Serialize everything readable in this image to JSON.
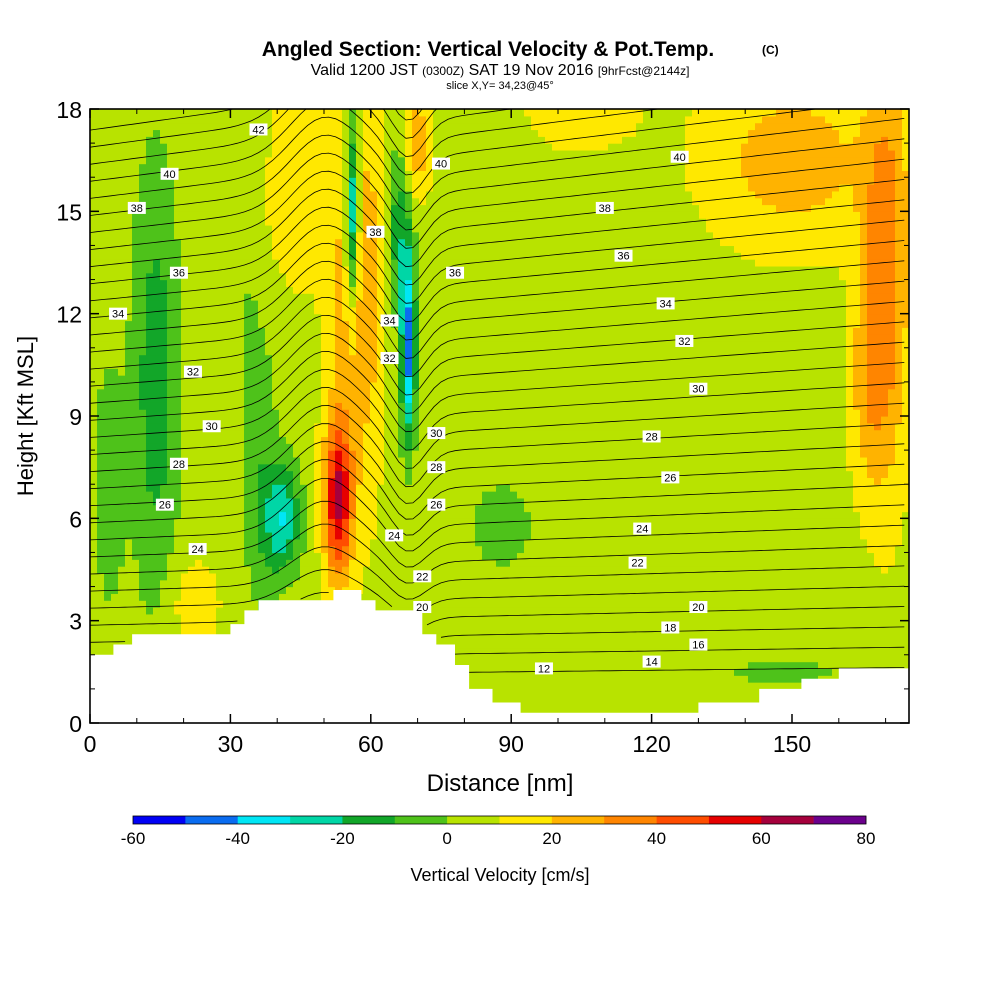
{
  "chart_data": {
    "type": "heatmap",
    "title": "Angled Section: Vertical Velocity & Pot.Temp.",
    "title_units": "(C)",
    "subtitle": {
      "valid_prefix": "Valid 1200 JST",
      "utc": "(0300Z)",
      "valid_date": "SAT 19 Nov 2016",
      "forecast": "[9hrFcst@2144z]"
    },
    "slice_label": "slice X,Y= 34,23@45°",
    "xlabel": "Distance [nm]",
    "ylabel": "Height [Kft MSL]",
    "xlim": [
      0,
      175
    ],
    "ylim": [
      0,
      18
    ],
    "x_ticks": [
      0,
      30,
      60,
      90,
      120,
      150
    ],
    "y_ticks": [
      0,
      3,
      6,
      9,
      12,
      15,
      18
    ],
    "grid": false,
    "colorbar": {
      "label": "Vertical Velocity [cm/s]",
      "bounds": [
        -60,
        -50,
        -40,
        -30,
        -20,
        -10,
        0,
        10,
        20,
        30,
        40,
        50,
        60,
        70,
        80
      ],
      "tick_labels": [
        "-60",
        "-40",
        "-20",
        "0",
        "20",
        "40",
        "60",
        "80"
      ],
      "colors": [
        "#0000f5",
        "#0a6cf0",
        "#00e6f5",
        "#00d6a6",
        "#12a629",
        "#4ec21a",
        "#b8e300",
        "#ffe800",
        "#ffb300",
        "#ff8500",
        "#ff4d00",
        "#e60000",
        "#a5003c",
        "#6b008c"
      ]
    },
    "terrain": [
      [
        0,
        2.0
      ],
      [
        5,
        2.0
      ],
      [
        5,
        2.3
      ],
      [
        9,
        2.3
      ],
      [
        9,
        2.6
      ],
      [
        30,
        2.6
      ],
      [
        30,
        2.9
      ],
      [
        33,
        2.9
      ],
      [
        33,
        3.3
      ],
      [
        36,
        3.3
      ],
      [
        36,
        3.6
      ],
      [
        52,
        3.6
      ],
      [
        52,
        3.9
      ],
      [
        58,
        3.9
      ],
      [
        58,
        3.6
      ],
      [
        61,
        3.6
      ],
      [
        61,
        3.3
      ],
      [
        71,
        3.3
      ],
      [
        71,
        2.6
      ],
      [
        74,
        2.6
      ],
      [
        74,
        2.3
      ],
      [
        78,
        2.3
      ],
      [
        78,
        1.7
      ],
      [
        81,
        1.7
      ],
      [
        81,
        1.0
      ],
      [
        86,
        1.0
      ],
      [
        86,
        0.6
      ],
      [
        92,
        0.6
      ],
      [
        92,
        0.3
      ],
      [
        130,
        0.3
      ],
      [
        130,
        0.6
      ],
      [
        143,
        0.6
      ],
      [
        143,
        1.0
      ],
      [
        152,
        1.0
      ],
      [
        152,
        1.3
      ],
      [
        160,
        1.3
      ],
      [
        160,
        1.6
      ],
      [
        175,
        1.6
      ]
    ],
    "updrafts": [
      {
        "x": 53,
        "z": 6.5,
        "w": 52,
        "sx": 3.0,
        "sz": 2.3
      },
      {
        "x": 55,
        "z": 12.0,
        "w": 18,
        "sx": 4.5,
        "sz": 6.0
      },
      {
        "x": 60,
        "z": 13.0,
        "w": 14,
        "sx": 3.0,
        "sz": 6.0
      },
      {
        "x": 44,
        "z": 16.0,
        "w": 14,
        "sx": 7.0,
        "sz": 3.0
      },
      {
        "x": 70,
        "z": 17.0,
        "w": 22,
        "sx": 3.0,
        "sz": 1.5
      },
      {
        "x": 22,
        "z": 3.5,
        "w": 10,
        "sx": 6.0,
        "sz": 1.4
      },
      {
        "x": 37,
        "z": 13.0,
        "w": 8,
        "sx": 3.0,
        "sz": 3.0
      },
      {
        "x": 170,
        "z": 13.0,
        "w": 30,
        "sx": 5.0,
        "sz": 6.0
      },
      {
        "x": 150,
        "z": 16.5,
        "w": 20,
        "sx": 18.0,
        "sz": 2.5
      },
      {
        "x": 166,
        "z": 10.0,
        "w": 14,
        "sx": 4.0,
        "sz": 3.0
      },
      {
        "x": 105,
        "z": 18.0,
        "w": 8,
        "sx": 14.0,
        "sz": 1.5
      }
    ],
    "downdrafts": [
      {
        "x": 68,
        "z": 11.0,
        "w": -50,
        "sx": 1.6,
        "sz": 2.8
      },
      {
        "x": 66,
        "z": 14.5,
        "w": -22,
        "sx": 2.3,
        "sz": 2.5
      },
      {
        "x": 41,
        "z": 6.0,
        "w": -35,
        "sx": 4.0,
        "sz": 1.6
      },
      {
        "x": 56,
        "z": 15.0,
        "w": -45,
        "sx": 1.5,
        "sz": 2.8
      },
      {
        "x": 14,
        "z": 10.0,
        "w": -22,
        "sx": 5.0,
        "sz": 6.5
      },
      {
        "x": 36,
        "z": 10.0,
        "w": -14,
        "sx": 4.0,
        "sz": 7.0
      },
      {
        "x": 88,
        "z": 5.8,
        "w": -12,
        "sx": 7.0,
        "sz": 1.4
      },
      {
        "x": 148,
        "z": 1.5,
        "w": -7,
        "sx": 25.0,
        "sz": 0.9
      },
      {
        "x": 4,
        "z": 7.0,
        "w": -12,
        "sx": 3.5,
        "sz": 4.0
      }
    ],
    "theta_labels": [
      {
        "x": 36,
        "z": 17.4,
        "text": "42"
      },
      {
        "x": 17,
        "z": 16.1,
        "text": "40"
      },
      {
        "x": 75,
        "z": 16.4,
        "text": "40"
      },
      {
        "x": 126,
        "z": 16.6,
        "text": "40"
      },
      {
        "x": 10,
        "z": 15.1,
        "text": "38"
      },
      {
        "x": 61,
        "z": 14.4,
        "text": "38"
      },
      {
        "x": 110,
        "z": 15.1,
        "text": "38"
      },
      {
        "x": 19,
        "z": 13.2,
        "text": "36"
      },
      {
        "x": 78,
        "z": 13.2,
        "text": "36"
      },
      {
        "x": 114,
        "z": 13.7,
        "text": "36"
      },
      {
        "x": 6,
        "z": 12.0,
        "text": "34"
      },
      {
        "x": 64,
        "z": 11.8,
        "text": "34"
      },
      {
        "x": 123,
        "z": 12.3,
        "text": "34"
      },
      {
        "x": 22,
        "z": 10.3,
        "text": "32"
      },
      {
        "x": 64,
        "z": 10.7,
        "text": "32"
      },
      {
        "x": 127,
        "z": 11.2,
        "text": "32"
      },
      {
        "x": 26,
        "z": 8.7,
        "text": "30"
      },
      {
        "x": 74,
        "z": 8.5,
        "text": "30"
      },
      {
        "x": 130,
        "z": 9.8,
        "text": "30"
      },
      {
        "x": 19,
        "z": 7.6,
        "text": "28"
      },
      {
        "x": 74,
        "z": 7.5,
        "text": "28"
      },
      {
        "x": 120,
        "z": 8.4,
        "text": "28"
      },
      {
        "x": 16,
        "z": 6.4,
        "text": "26"
      },
      {
        "x": 74,
        "z": 6.4,
        "text": "26"
      },
      {
        "x": 124,
        "z": 7.2,
        "text": "26"
      },
      {
        "x": 23,
        "z": 5.1,
        "text": "24"
      },
      {
        "x": 65,
        "z": 5.5,
        "text": "24"
      },
      {
        "x": 118,
        "z": 5.7,
        "text": "24"
      },
      {
        "x": 71,
        "z": 4.3,
        "text": "22"
      },
      {
        "x": 117,
        "z": 4.7,
        "text": "22"
      },
      {
        "x": 71,
        "z": 3.4,
        "text": "20"
      },
      {
        "x": 130,
        "z": 3.4,
        "text": "20"
      },
      {
        "x": 124,
        "z": 2.8,
        "text": "18"
      },
      {
        "x": 130,
        "z": 2.3,
        "text": "16"
      },
      {
        "x": 120,
        "z": 1.8,
        "text": "14"
      },
      {
        "x": 97,
        "z": 1.6,
        "text": "12"
      }
    ]
  }
}
